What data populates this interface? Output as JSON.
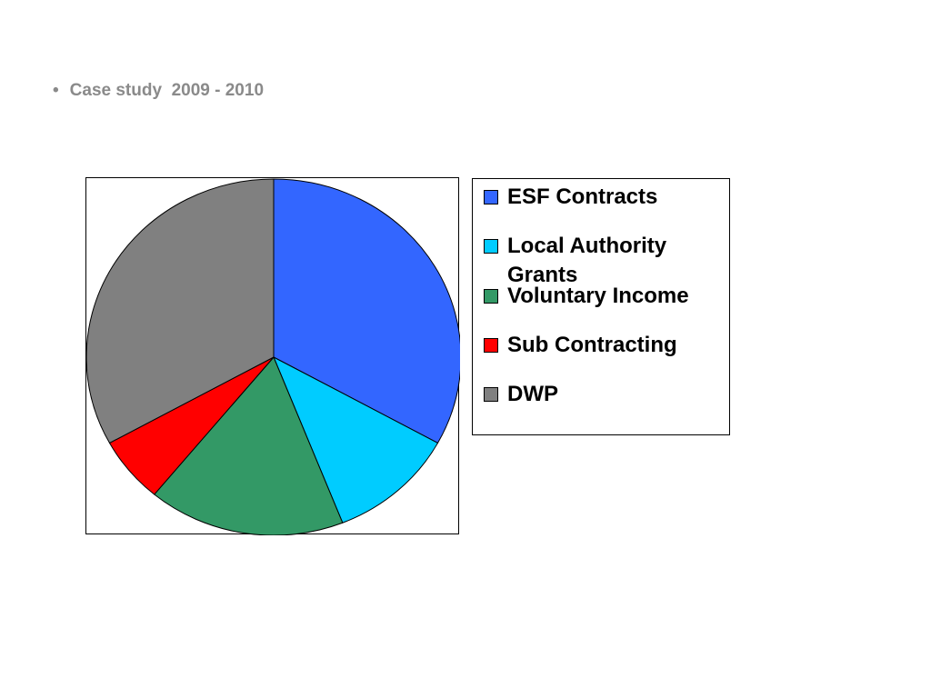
{
  "slide": {
    "bullet_marker": "•",
    "bullet_text": "Case study  2009 - 2010"
  },
  "chart_data": {
    "type": "pie",
    "title": "",
    "legend_position": "right",
    "start_angle_deg": 0,
    "direction": "clockwise",
    "categories": [
      "ESF Contracts",
      "Local Authority Grants",
      "Voluntary Income",
      "Sub Contracting",
      "DWP"
    ],
    "values": [
      33,
      11,
      17,
      6,
      33
    ],
    "colors": [
      "#3366FF",
      "#00CCFF",
      "#339966",
      "#FF0000",
      "#808080"
    ]
  }
}
